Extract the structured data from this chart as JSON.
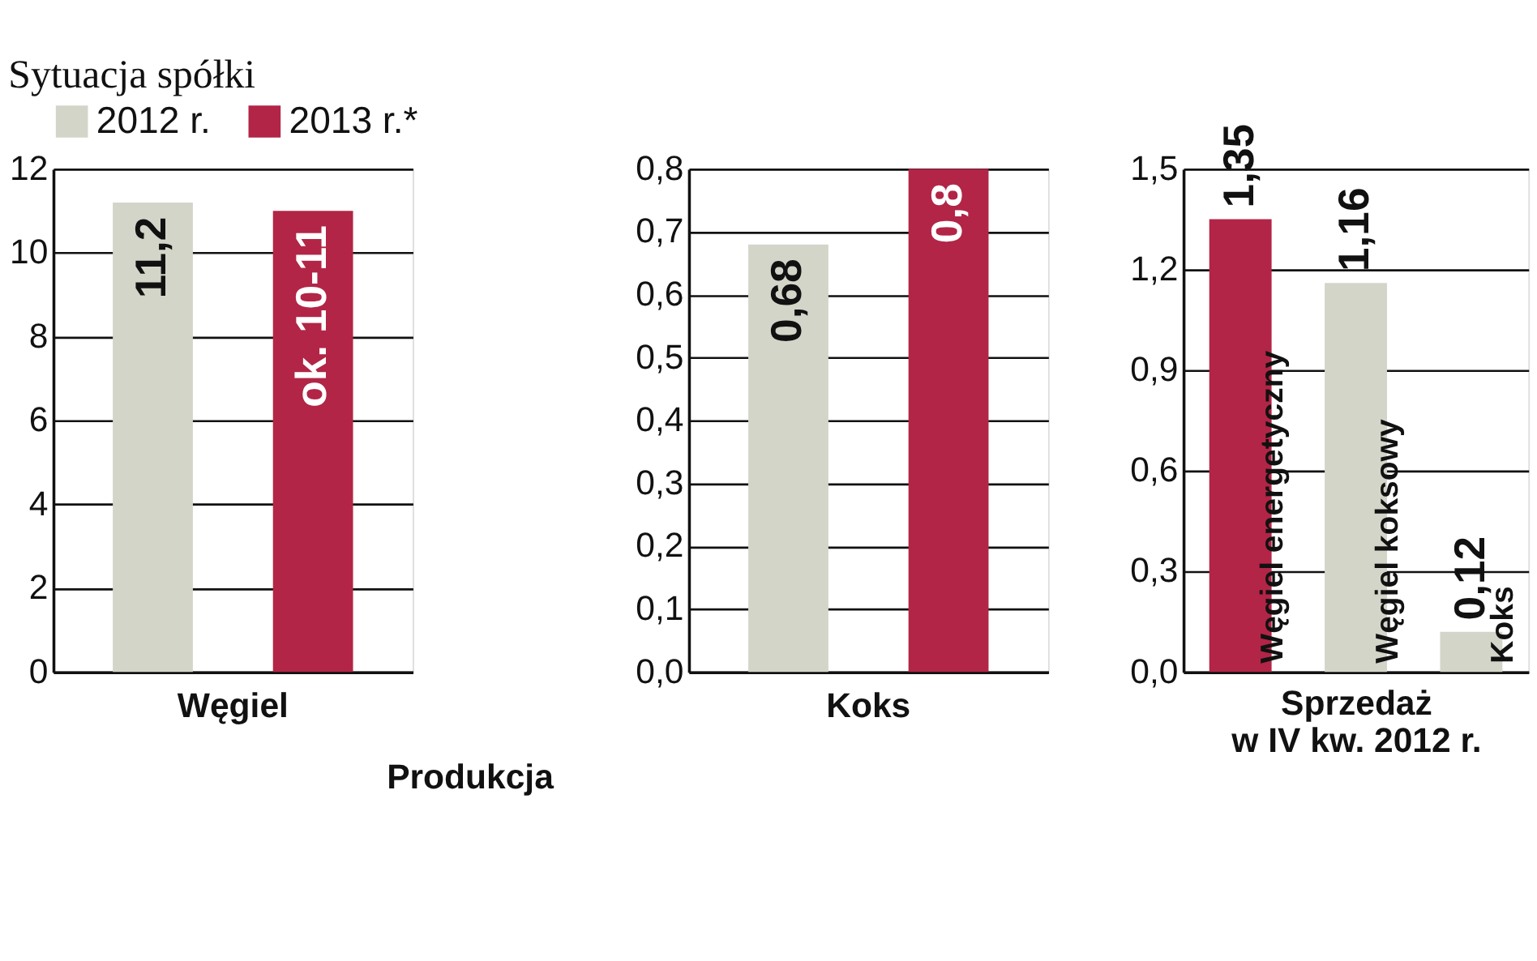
{
  "chart_data": [
    {
      "type": "bar",
      "title": "Sytuacja spółki",
      "categories": [
        "Węgiel"
      ],
      "legend": "top left",
      "grid": "y",
      "annotations": [
        "Produkcja"
      ],
      "ylim": [
        0,
        12
      ],
      "yticks": [
        0,
        2,
        4,
        6,
        8,
        10,
        12
      ],
      "series": [
        {
          "name": "2012 r.",
          "color": "#d4d5c9",
          "values": [
            11.2
          ],
          "value_labels": [
            "11,2"
          ]
        },
        {
          "name": "2013 r.*",
          "color": "#b22546",
          "values": [
            11
          ],
          "value_labels": [
            "ok. 10-11"
          ]
        }
      ]
    },
    {
      "type": "bar",
      "categories": [
        "Koks"
      ],
      "grid": "y",
      "ylim": [
        0,
        0.8
      ],
      "yticks": [
        {
          "value": 0,
          "label": "0,0"
        },
        {
          "value": 0.1,
          "label": "0,1"
        },
        {
          "value": 0.2,
          "label": "0,2"
        },
        {
          "value": 0.3,
          "label": "0,3"
        },
        {
          "value": 0.4,
          "label": "0,4"
        },
        {
          "value": 0.5,
          "label": "0,5"
        },
        {
          "value": 0.6,
          "label": "0,6"
        },
        {
          "value": 0.7,
          "label": "0,7"
        },
        {
          "value": 0.8,
          "label": "0,8"
        }
      ],
      "series": [
        {
          "color": "#d4d5c9",
          "values": [
            0.68
          ],
          "value_labels": [
            "0,68"
          ]
        },
        {
          "color": "#b22546",
          "values": [
            0.8
          ],
          "value_labels": [
            "0,8"
          ]
        }
      ]
    },
    {
      "type": "bar",
      "categories": [
        "Węgiel energetyczny",
        "Węgiel koksowy",
        "Koks"
      ],
      "grid": "y",
      "tick_labels": "y",
      "xlabel": "Sprzedaż w IV kw. 2012 r.",
      "ylim": [
        0,
        1.5
      ],
      "yticks": [
        {
          "value": 0,
          "label": "0,0"
        },
        {
          "value": 0.3,
          "label": "0,3"
        },
        {
          "value": 0.6,
          "label": "0,6"
        },
        {
          "value": 0.9,
          "label": "0,9"
        },
        {
          "value": 1.2,
          "label": "1,2"
        },
        {
          "value": 1.5,
          "label": "1,5"
        }
      ],
      "values": [
        1.35,
        1.16,
        0.12
      ],
      "colors": [
        "#b22546",
        "#d4d5c9",
        "#d4d5c9"
      ],
      "value_labels": [
        "1,35",
        "1,16",
        "0,12"
      ]
    }
  ]
}
